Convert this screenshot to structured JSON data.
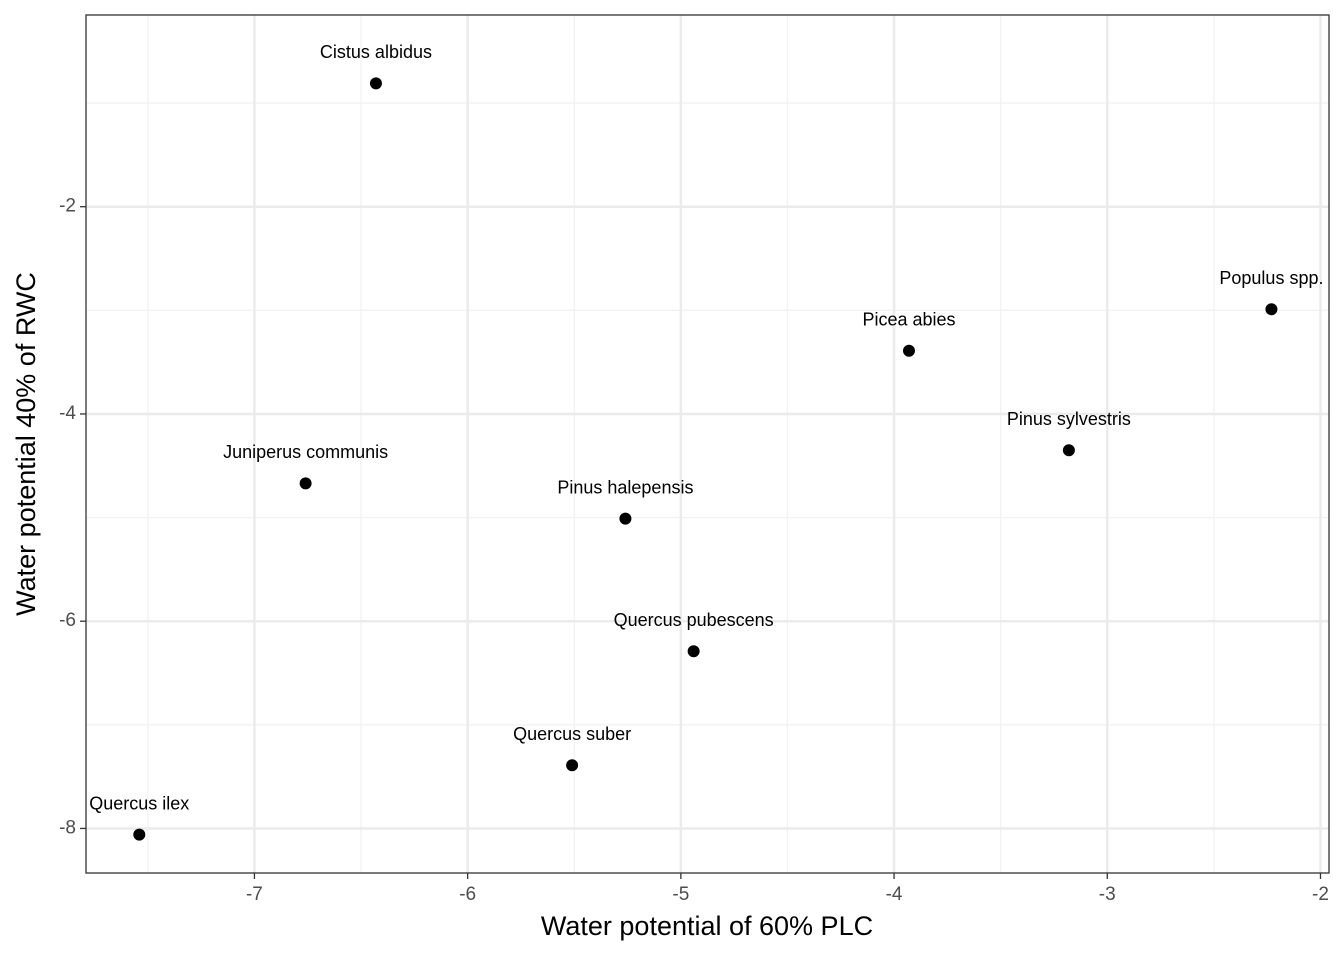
{
  "chart_data": {
    "type": "scatter",
    "x_label": "Water potential of 60% PLC",
    "y_label": "Water potential 40% of RWC",
    "labels": [
      "Cistus albidus",
      "Populus spp.",
      "Picea abies",
      "Pinus sylvestris",
      "Juniperus communis",
      "Pinus halepensis",
      "Quercus pubescens",
      "Quercus suber",
      "Quercus ilex"
    ],
    "x": [
      -6.43,
      -2.23,
      -3.93,
      -3.18,
      -6.76,
      -5.26,
      -4.94,
      -5.51,
      -7.54
    ],
    "y": [
      -0.81,
      -2.99,
      -3.39,
      -4.35,
      -4.67,
      -5.01,
      -6.29,
      -7.39,
      -8.06
    ],
    "color": "#000000",
    "xlim": [
      -7.79,
      -1.96
    ],
    "ylim": [
      -8.43,
      -0.15
    ],
    "xticks": [
      -7,
      -6,
      -5,
      -4,
      -3,
      -2
    ],
    "yticks": [
      -8,
      -6,
      -4,
      -2
    ],
    "xminor": [
      -7.5,
      -6.5,
      -5.5,
      -4.5,
      -3.5,
      -2.5
    ],
    "yminor": [
      -7,
      -5,
      -3,
      -1
    ],
    "grid": true
  }
}
